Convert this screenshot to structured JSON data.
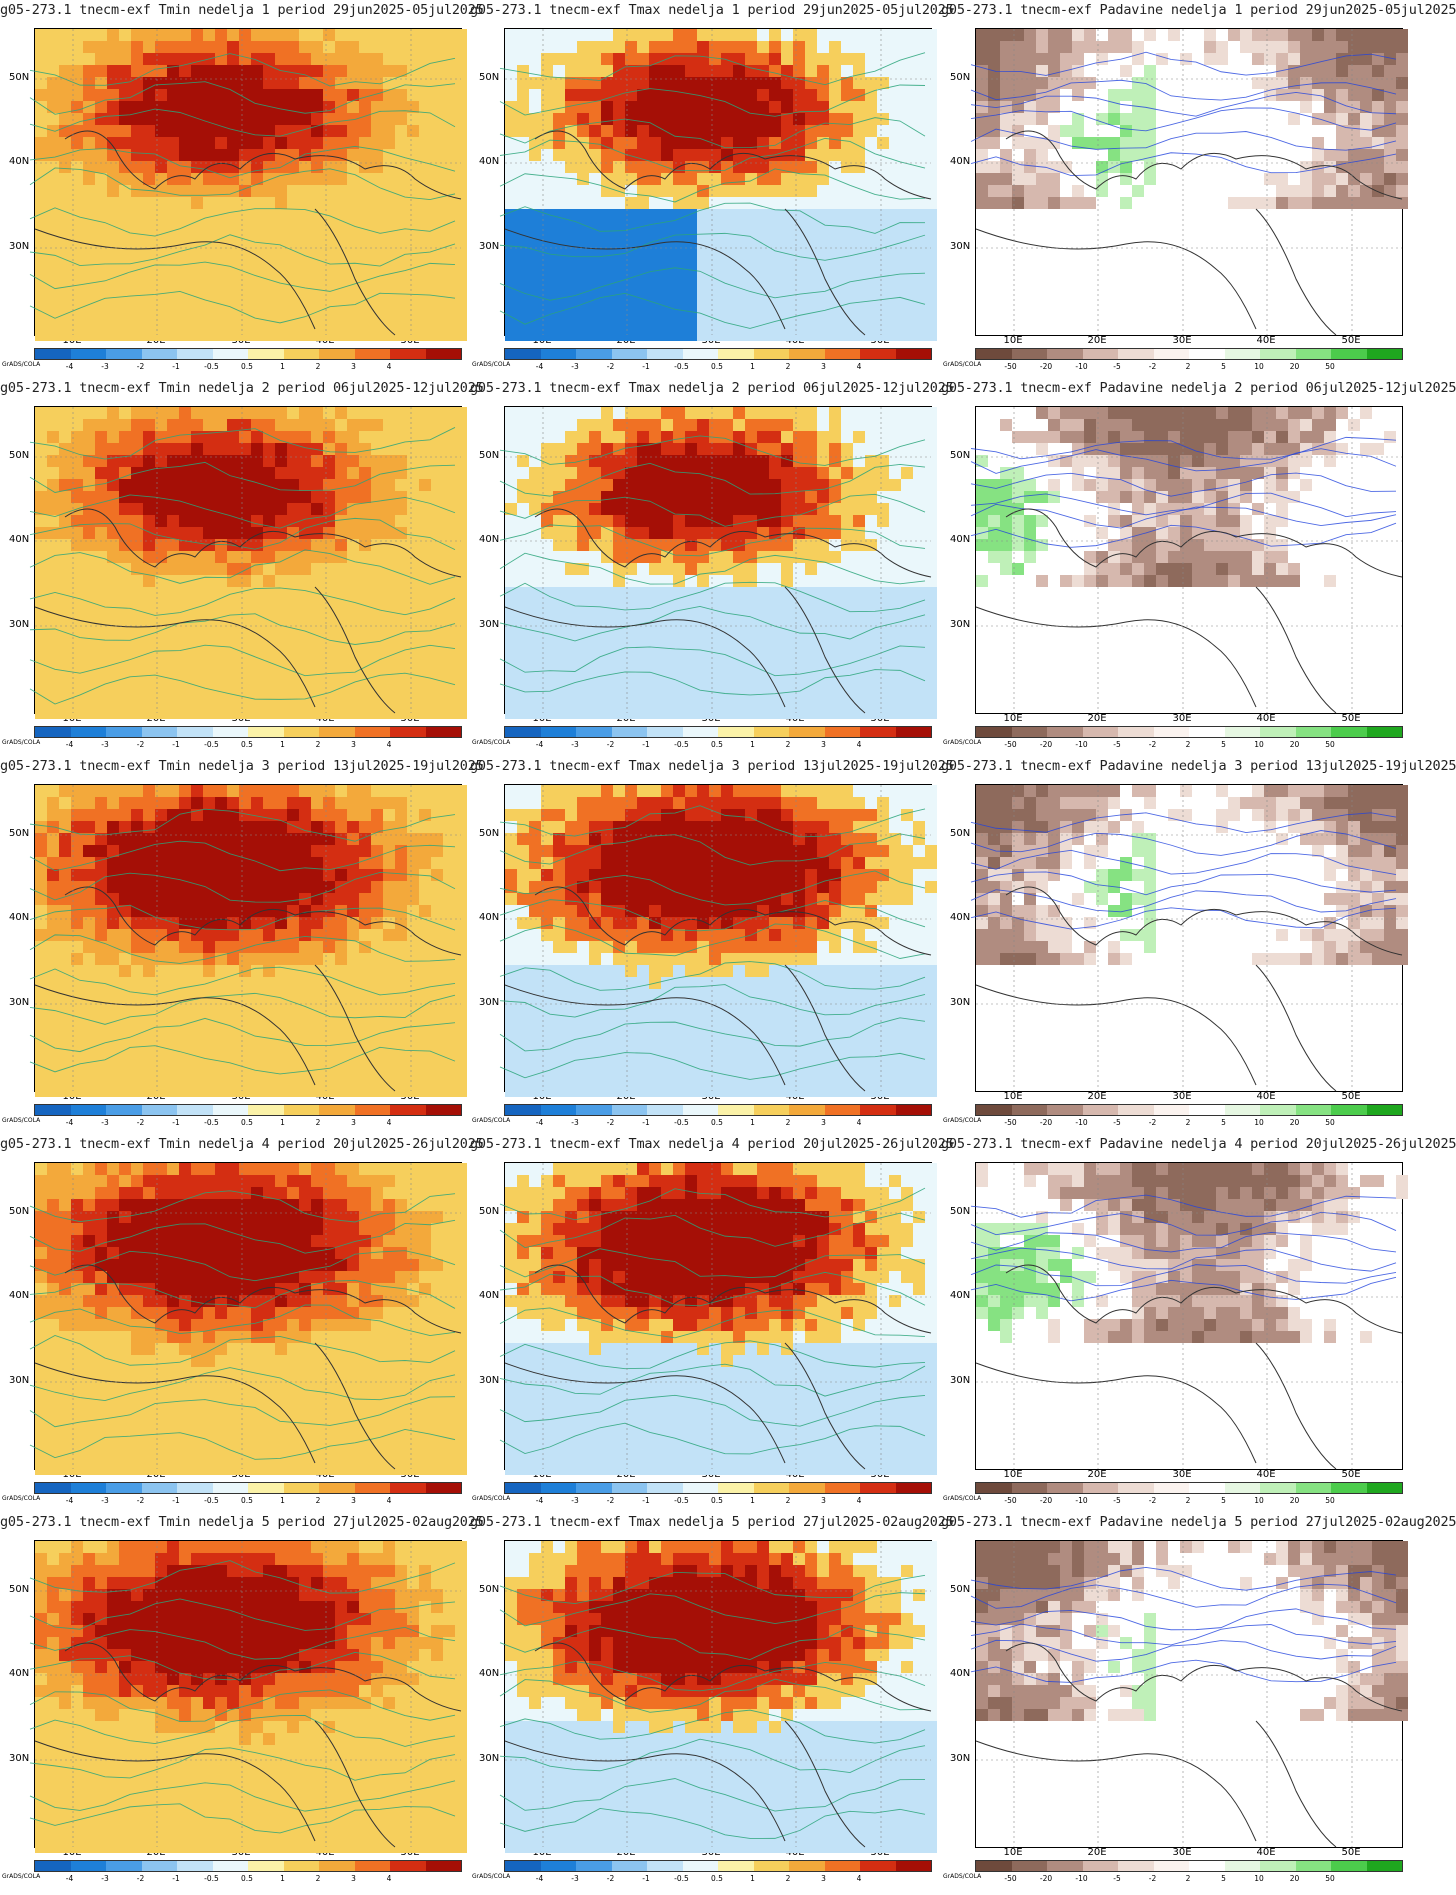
{
  "panels": [
    {
      "title": "g05-273.1 tnecm-exf Tmin nedelja 1 period 29jun2025-05jul2025",
      "kind": "temp"
    },
    {
      "title": "g05-273.1 tnecm-exf Tmax nedelja 1 period 29jun2025-05jul2025",
      "kind": "temp"
    },
    {
      "title": "g05-273.1 tnecm-exf Padavine nedelja 1 period 29jun2025-05jul2025",
      "kind": "precip"
    },
    {
      "title": "g05-273.1 tnecm-exf Tmin nedelja 2 period 06jul2025-12jul2025",
      "kind": "temp"
    },
    {
      "title": "g05-273.1 tnecm-exf Tmax nedelja 2 period 06jul2025-12jul2025",
      "kind": "temp"
    },
    {
      "title": "g05-273.1 tnecm-exf Padavine nedelja 2 period 06jul2025-12jul2025",
      "kind": "precip"
    },
    {
      "title": "g05-273.1 tnecm-exf Tmin nedelja 3 period 13jul2025-19jul2025",
      "kind": "temp"
    },
    {
      "title": "g05-273.1 tnecm-exf Tmax nedelja 3 period 13jul2025-19jul2025",
      "kind": "temp"
    },
    {
      "title": "g05-273.1 tnecm-exf Padavine nedelja 3 period 13jul2025-19jul2025",
      "kind": "precip"
    },
    {
      "title": "g05-273.1 tnecm-exf Tmin nedelja 4 period 20jul2025-26jul2025",
      "kind": "temp"
    },
    {
      "title": "g05-273.1 tnecm-exf Tmax nedelja 4 period 20jul2025-26jul2025",
      "kind": "temp"
    },
    {
      "title": "g05-273.1 tnecm-exf Padavine nedelja 4 period 20jul2025-26jul2025",
      "kind": "precip"
    },
    {
      "title": "g05-273.1 tnecm-exf Tmin nedelja 5 period 27jul2025-02aug2025",
      "kind": "temp"
    },
    {
      "title": "g05-273.1 tnecm-exf Tmax nedelja 5 period 27jul2025-02aug2025",
      "kind": "temp"
    },
    {
      "title": "g05-273.1 tnecm-exf Padavine nedelja 5 period 27jul2025-02aug2025",
      "kind": "precip"
    }
  ],
  "axes": {
    "lat_labels": [
      "50N",
      "40N",
      "30N"
    ],
    "lon_labels": [
      "10E",
      "20E",
      "30E",
      "40E",
      "50E"
    ]
  },
  "credit": "GrADS/COLA",
  "temp_scale": {
    "colors": [
      "#1565c0",
      "#1e7fd8",
      "#4a9de6",
      "#8cc4f0",
      "#c2e2f7",
      "#eaf7fb",
      "#fbf2a8",
      "#f6cf5c",
      "#f3a93b",
      "#f07124",
      "#d42e12",
      "#a50f06"
    ],
    "ticks": [
      "-4",
      "-3",
      "-2",
      "-1",
      "-0.5",
      "0.5",
      "1",
      "2",
      "3",
      "4"
    ]
  },
  "precip_scale": {
    "colors": [
      "#6e4a3c",
      "#8e6a5c",
      "#b08c80",
      "#d6b8ae",
      "#eddcd4",
      "#fbf3ef",
      "#ffffff",
      "#e6f7e2",
      "#bff0b8",
      "#86e282",
      "#4ccc4c",
      "#1fa71f"
    ],
    "ticks": [
      "-50",
      "-20",
      "-10",
      "-5",
      "-2",
      "2",
      "5",
      "10",
      "20",
      "50"
    ]
  },
  "field_colors": {
    "temp_hot": "#a50f06",
    "temp_warm": "#f07124",
    "temp_mild": "#f6cf5c",
    "temp_cool": "#c2e2f7",
    "temp_cold": "#1e7fd8",
    "precip_dry": "#8e6a5c",
    "precip_wet": "#86e282",
    "contour_temp": "#2aa57a",
    "contour_precip": "#2244dd"
  }
}
